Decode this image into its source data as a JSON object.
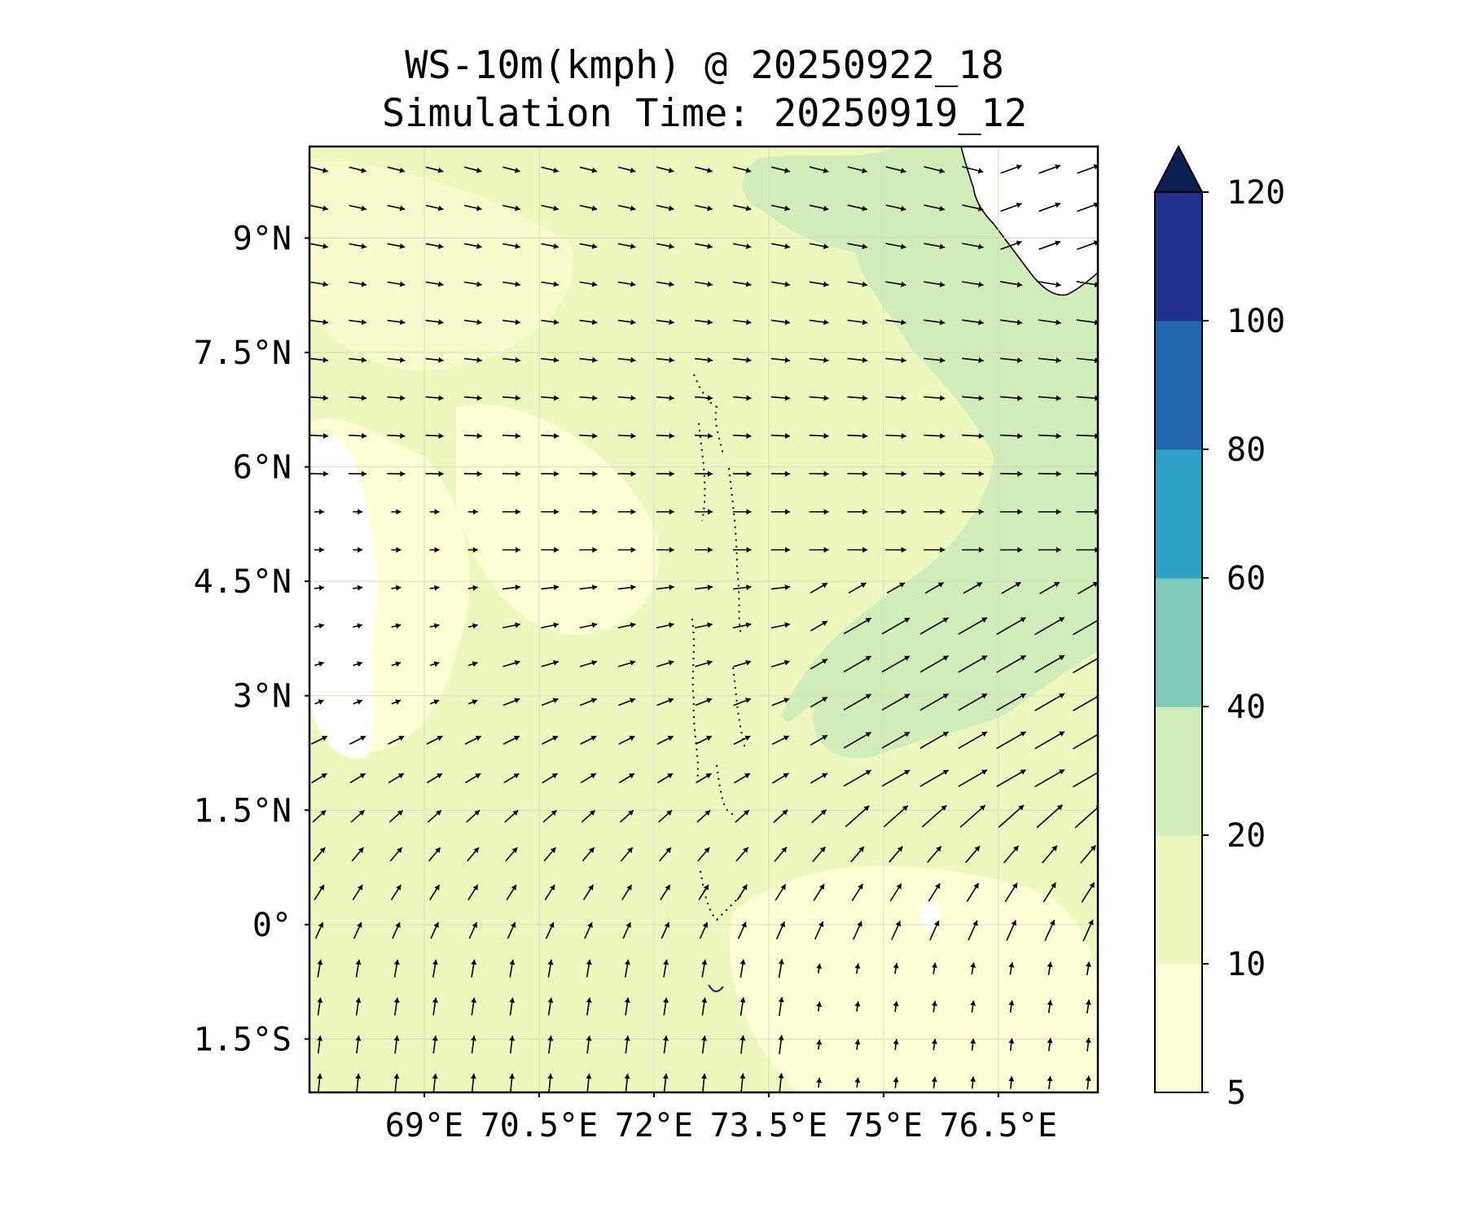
{
  "title": {
    "line1": "WS-10m(kmph) @ 20250922_18",
    "line2": "Simulation Time: 20250919_12"
  },
  "map": {
    "lat_range": [
      -2.2,
      10.2
    ],
    "lon_range": [
      67.5,
      77.8
    ],
    "lat_ticks": [
      {
        "value": 9,
        "label": "9°N"
      },
      {
        "value": 7.5,
        "label": "7.5°N"
      },
      {
        "value": 6,
        "label": "6°N"
      },
      {
        "value": 4.5,
        "label": "4.5°N"
      },
      {
        "value": 3,
        "label": "3°N"
      },
      {
        "value": 1.5,
        "label": "1.5°N"
      },
      {
        "value": 0,
        "label": "0°"
      },
      {
        "value": -1.5,
        "label": "1.5°S"
      }
    ],
    "lon_ticks": [
      {
        "value": 69,
        "label": "69°E"
      },
      {
        "value": 70.5,
        "label": "70.5°E"
      },
      {
        "value": 72,
        "label": "72°E"
      },
      {
        "value": 73.5,
        "label": "73.5°E"
      },
      {
        "value": 75,
        "label": "75°E"
      },
      {
        "value": 76.5,
        "label": "76.5°E"
      }
    ],
    "gridlines": true,
    "background_color": "#edf8be",
    "coastline_color": "#000000"
  },
  "colorbar": {
    "levels": [
      {
        "value": 5,
        "label": "5"
      },
      {
        "value": 10,
        "label": "10"
      },
      {
        "value": 20,
        "label": "20"
      },
      {
        "value": 40,
        "label": "40"
      },
      {
        "value": 60,
        "label": "60"
      },
      {
        "value": 80,
        "label": "80"
      },
      {
        "value": 100,
        "label": "100"
      },
      {
        "value": 120,
        "label": "120"
      }
    ],
    "colors": [
      "#ffffd6",
      "#edf8be",
      "#d1edba",
      "#7fcabd",
      "#2fa1c7",
      "#2366ad",
      "#21318e",
      "#0c1f52"
    ],
    "extend": "max"
  },
  "chart_data": {
    "type": "heatmap",
    "title": "WS-10m(kmph) @ 20250922_18 / Simulation Time: 20250919_12",
    "xlabel": "",
    "ylabel": "",
    "field": "10 m wind speed (kmph) with wind vectors",
    "regions": [
      {
        "name": "Maldives approx wind speed",
        "value_range": [
          10,
          20
        ]
      },
      {
        "name": "NE sector off Sri Lanka / south of India",
        "value_range": [
          20,
          40
        ]
      },
      {
        "name": "Central band 3°N–4.5°N east of 74.5°E",
        "value_range": [
          20,
          40
        ]
      },
      {
        "name": "West patch near 68°E 3°N–6°N",
        "value_range": [
          5,
          10
        ]
      },
      {
        "name": "Southeast 0°–1.5°S 73°E–77°E",
        "value_range": [
          5,
          10
        ]
      }
    ],
    "wind_vectors": [
      {
        "lat_band": "7.5°N–9.5°N",
        "direction": "westerly/west-northwesterly (blowing east-southeast)"
      },
      {
        "lat_band": "5°N–7°N",
        "direction": "westerly (blowing east)"
      },
      {
        "lat_band": "2°N–4.5°N, east of 73.5°E",
        "direction": "southwesterly (blowing northeast)"
      },
      {
        "lat_band": "0°–2°N",
        "direction": "southwesterly/southerly (blowing north-northeast)"
      },
      {
        "lat_band": "1.5°S–0°",
        "direction": "southerly (blowing north)"
      }
    ]
  }
}
